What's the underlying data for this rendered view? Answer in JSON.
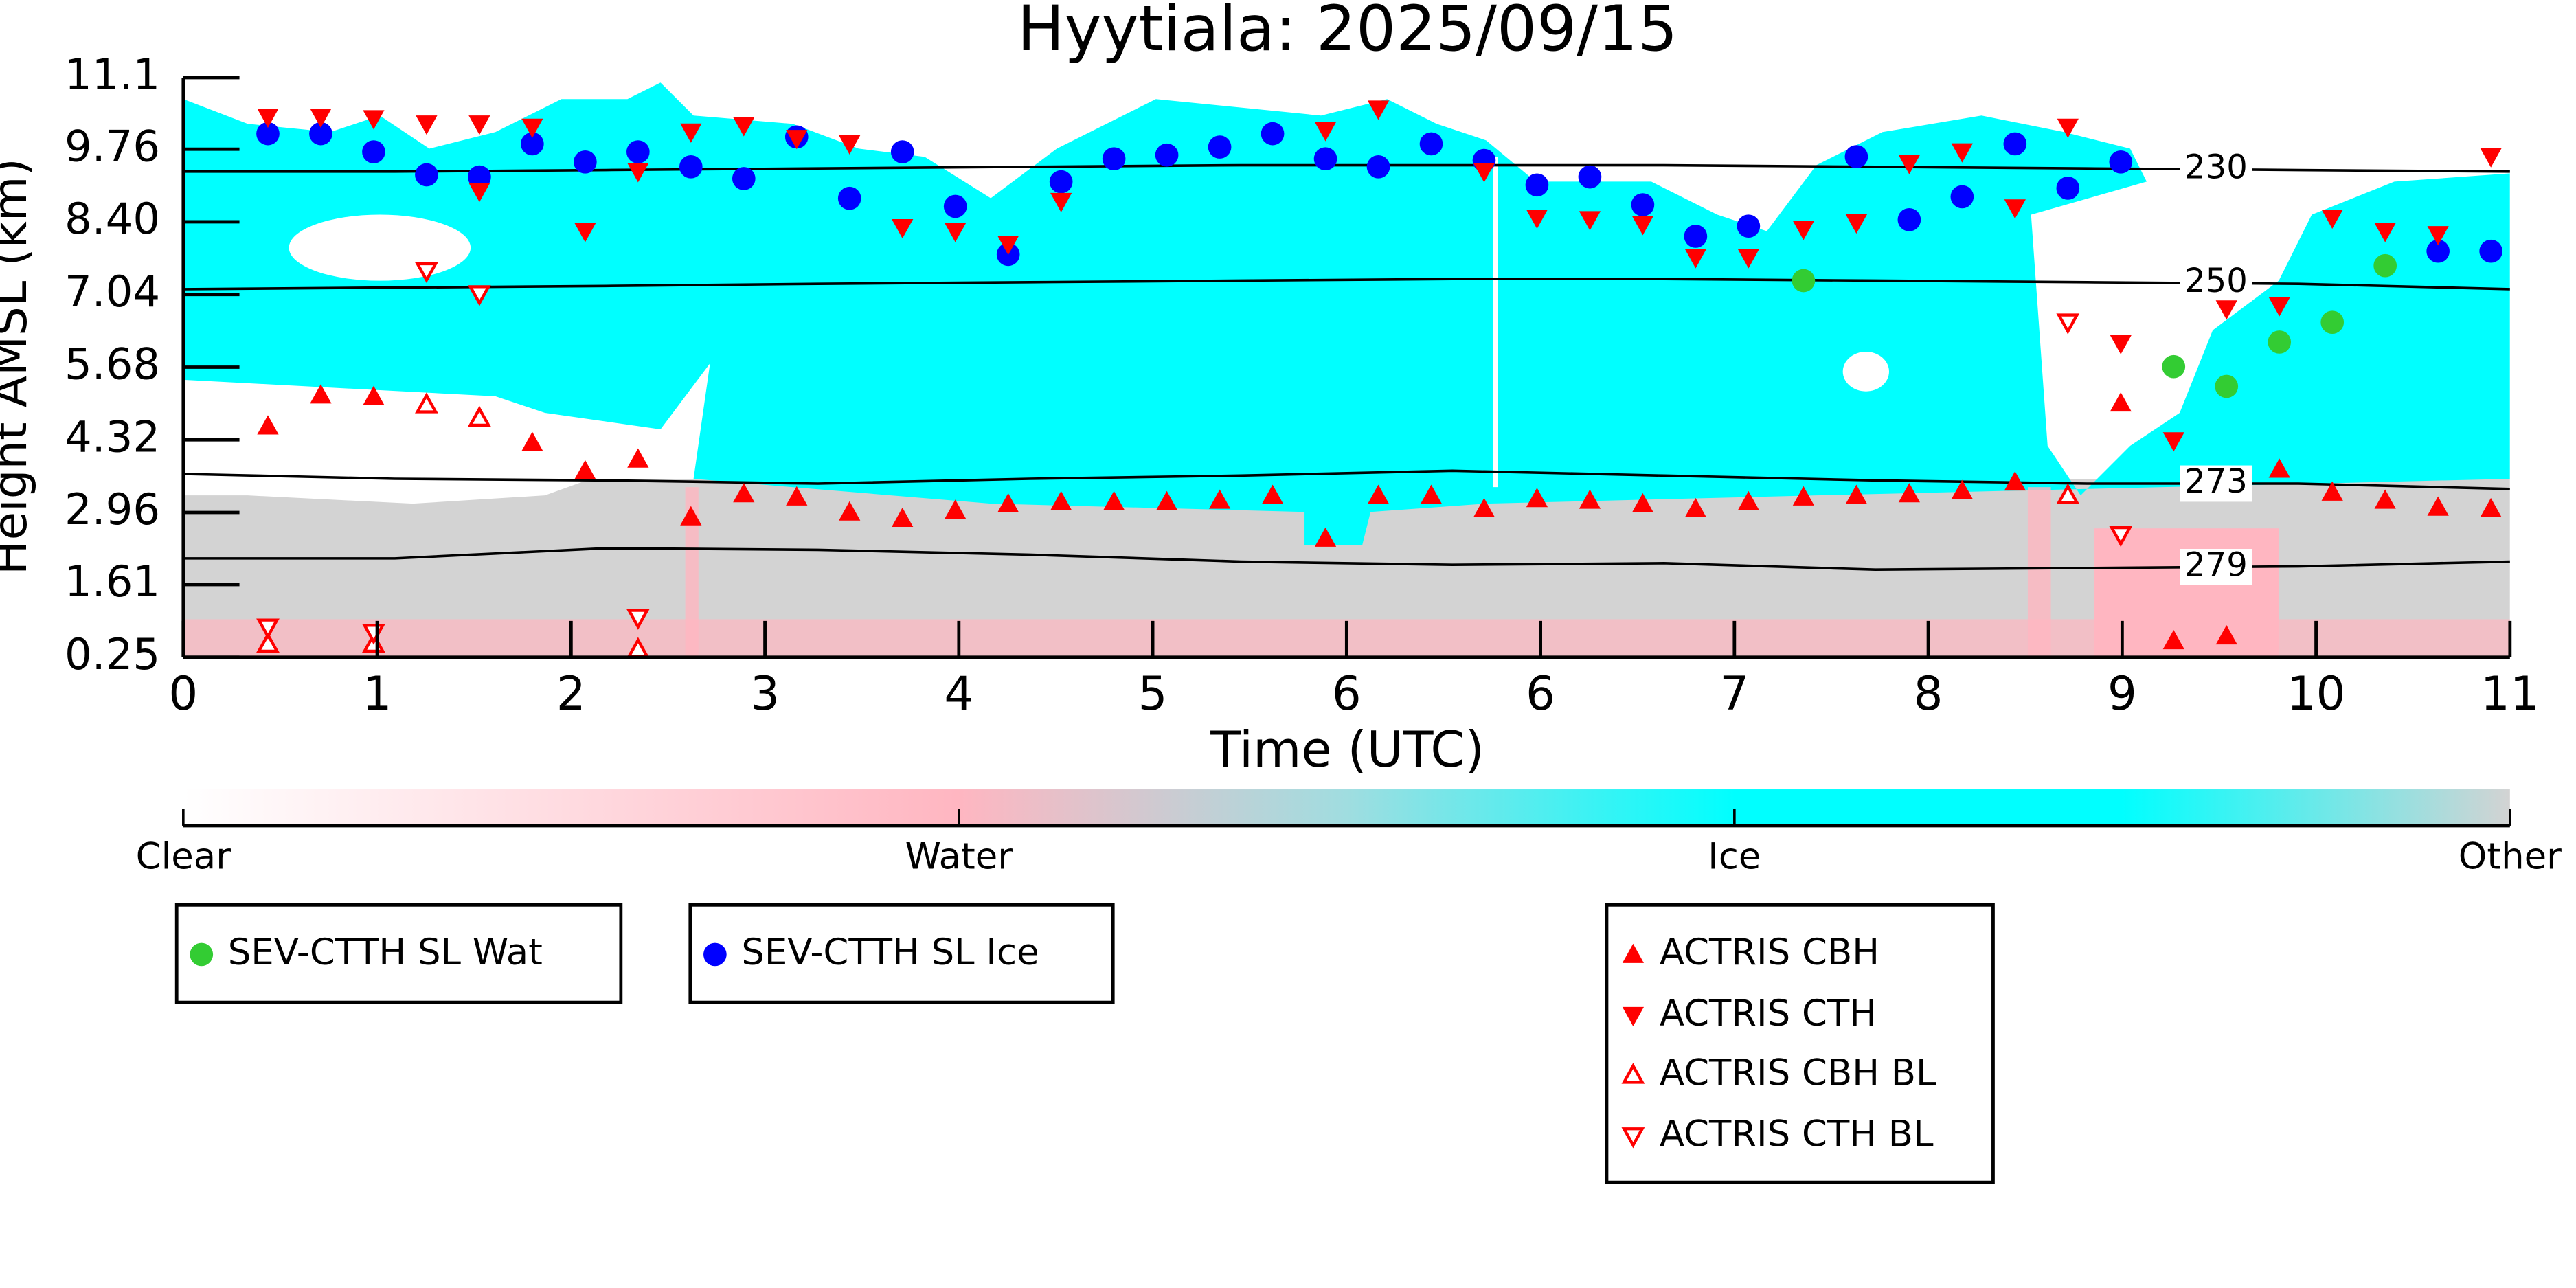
{
  "chart_data": {
    "type": "scatter",
    "title": "Hyytiala: 2025/09/15",
    "xlabel": "Time (UTC)",
    "ylabel": "Height AMSL (km)",
    "xlim": [
      0,
      11
    ],
    "ylim": [
      0.25,
      11.1
    ],
    "xticks": [
      0,
      {
        "value": 0.9167,
        "label": "1"
      },
      {
        "value": 1.8333,
        "label": "2"
      },
      {
        "value": 2.75,
        "label": "3"
      },
      {
        "value": 3.6667,
        "label": "4"
      },
      {
        "value": 4.5833,
        "label": "5"
      },
      {
        "value": 5.5,
        "label": "6"
      },
      {
        "value": 6.4167,
        "label": "6"
      },
      {
        "value": 7.3333,
        "label": "7"
      },
      {
        "value": 8.25,
        "label": "8"
      },
      {
        "value": 9.1667,
        "label": "9"
      },
      {
        "value": 10.0833,
        "label": "10"
      },
      11
    ],
    "yticks": [
      0.25,
      1.61,
      2.96,
      4.32,
      5.68,
      7.04,
      {
        "value": 8.4,
        "label": "8.40"
      },
      9.76,
      11.1
    ],
    "series": [
      {
        "name": "SEV-CTTH SL Wat",
        "color": "#33cc33",
        "marker": "circle",
        "x": [
          7.66,
          9.41,
          9.66,
          9.91,
          10.16,
          10.41
        ],
        "values": [
          7.3,
          5.69,
          5.32,
          6.15,
          6.52,
          7.58
        ]
      },
      {
        "name": "SEV-CTTH SL Ice",
        "color": "#0000ff",
        "marker": "circle",
        "x": [
          0.4,
          0.65,
          0.9,
          1.15,
          1.4,
          1.65,
          1.9,
          2.15,
          2.4,
          2.65,
          2.9,
          3.15,
          3.4,
          3.65,
          3.9,
          4.15,
          4.4,
          4.65,
          4.9,
          5.15,
          5.4,
          5.65,
          5.9,
          6.15,
          6.4,
          6.65,
          6.9,
          7.15,
          7.4,
          7.91,
          8.16,
          8.41,
          8.66,
          8.91,
          9.16,
          10.66,
          10.91
        ],
        "values": [
          10.05,
          10.05,
          9.71,
          9.28,
          9.24,
          9.86,
          9.52,
          9.71,
          9.43,
          9.21,
          9.99,
          8.84,
          9.71,
          8.69,
          7.79,
          9.15,
          9.58,
          9.65,
          9.8,
          10.05,
          9.58,
          9.43,
          9.86,
          9.55,
          9.09,
          9.24,
          8.72,
          8.13,
          8.32,
          9.62,
          8.44,
          8.87,
          9.86,
          9.03,
          9.52,
          7.85,
          7.85
        ]
      },
      {
        "name": "ACTRIS CBH",
        "color": "#ff0000",
        "marker": "triangle-up",
        "x": [
          0.4,
          0.65,
          0.9,
          1.65,
          1.9,
          2.15,
          2.4,
          2.65,
          2.9,
          3.15,
          3.4,
          3.65,
          3.9,
          4.15,
          4.4,
          4.65,
          4.9,
          5.15,
          5.4,
          5.65,
          5.9,
          6.15,
          6.4,
          6.65,
          6.9,
          7.15,
          7.4,
          7.66,
          7.91,
          8.16,
          8.41,
          8.66,
          9.16,
          9.41,
          9.66,
          9.91,
          10.16,
          10.41,
          10.66,
          10.91
        ],
        "values": [
          4.58,
          5.16,
          5.13,
          4.27,
          3.74,
          3.96,
          2.88,
          3.31,
          3.25,
          2.97,
          2.85,
          3.0,
          3.12,
          3.16,
          3.16,
          3.16,
          3.19,
          3.28,
          2.48,
          3.28,
          3.28,
          3.03,
          3.22,
          3.19,
          3.12,
          3.03,
          3.16,
          3.25,
          3.28,
          3.31,
          3.37,
          3.53,
          5.01,
          0.56,
          0.65,
          3.77,
          3.34,
          3.19,
          3.06,
          3.03
        ]
      },
      {
        "name": "ACTRIS CTH",
        "color": "#ff0000",
        "marker": "triangle-down",
        "x": [
          0.4,
          0.65,
          0.9,
          1.15,
          1.4,
          1.4,
          1.65,
          1.9,
          2.15,
          2.4,
          2.65,
          2.9,
          3.15,
          3.4,
          3.65,
          3.9,
          4.15,
          5.4,
          5.65,
          6.15,
          6.4,
          6.65,
          6.9,
          7.15,
          7.4,
          7.66,
          7.91,
          8.16,
          8.41,
          8.66,
          8.91,
          9.16,
          9.41,
          9.66,
          9.91,
          10.16,
          10.41,
          10.66,
          10.91
        ],
        "values": [
          10.36,
          10.36,
          10.33,
          10.23,
          10.23,
          8.97,
          10.17,
          8.22,
          9.34,
          10.08,
          10.2,
          9.96,
          9.86,
          8.29,
          8.22,
          7.98,
          8.78,
          10.11,
          10.51,
          9.34,
          8.47,
          8.44,
          8.35,
          7.73,
          7.73,
          8.26,
          8.38,
          9.49,
          9.71,
          8.66,
          10.17,
          6.12,
          4.3,
          6.77,
          6.83,
          8.47,
          8.22,
          8.16,
          9.62
        ]
      },
      {
        "name": "ACTRIS CBH BL",
        "color": "#ff0000",
        "marker": "triangle-up-open",
        "x": [
          0.4,
          0.9,
          1.15,
          1.4,
          2.15,
          8.91
        ],
        "values": [
          0.5,
          0.5,
          4.98,
          4.73,
          0.4,
          3.28
        ]
      },
      {
        "name": "ACTRIS CTH BL",
        "color": "#ff0000",
        "marker": "triangle-down-open",
        "x": [
          0.4,
          0.9,
          1.15,
          1.4,
          2.15,
          8.91,
          9.16
        ],
        "values": [
          0.81,
          0.71,
          7.48,
          7.05,
          0.99,
          6.52,
          2.54
        ]
      }
    ],
    "contours": [
      {
        "name": "230",
        "color": "#000000",
        "x": [
          0,
          1,
          2,
          3,
          4,
          5,
          6,
          7,
          8,
          9,
          10,
          11
        ],
        "values": [
          9.34,
          9.34,
          9.37,
          9.4,
          9.43,
          9.46,
          9.46,
          9.46,
          9.43,
          9.4,
          9.37,
          9.34
        ]
      },
      {
        "name": "250",
        "color": "#000000",
        "x": [
          0,
          1,
          2,
          3,
          4,
          5,
          6,
          7,
          8,
          9,
          10,
          11
        ],
        "values": [
          7.14,
          7.17,
          7.2,
          7.24,
          7.27,
          7.3,
          7.33,
          7.33,
          7.3,
          7.27,
          7.24,
          7.14
        ]
      },
      {
        "name": "273",
        "color": "#000000",
        "x": [
          0,
          1,
          2,
          3,
          4,
          5,
          6,
          7,
          8,
          9,
          10,
          11
        ],
        "values": [
          3.68,
          3.59,
          3.56,
          3.5,
          3.59,
          3.65,
          3.74,
          3.65,
          3.56,
          3.5,
          3.5,
          3.4
        ]
      },
      {
        "name": "279",
        "color": "#000000",
        "x": [
          0,
          1,
          2,
          3,
          4,
          5,
          6,
          7,
          8,
          9,
          10,
          11
        ],
        "values": [
          2.1,
          2.1,
          2.29,
          2.26,
          2.17,
          2.04,
          1.98,
          2.01,
          1.89,
          1.92,
          1.95,
          2.04
        ]
      }
    ],
    "colorbar": {
      "labels": [
        "Clear",
        "Water",
        "Ice",
        "Other"
      ],
      "colors": [
        "#ffffff",
        "#ffb6c1",
        "#00ffff",
        "#d3d3d3"
      ]
    }
  }
}
